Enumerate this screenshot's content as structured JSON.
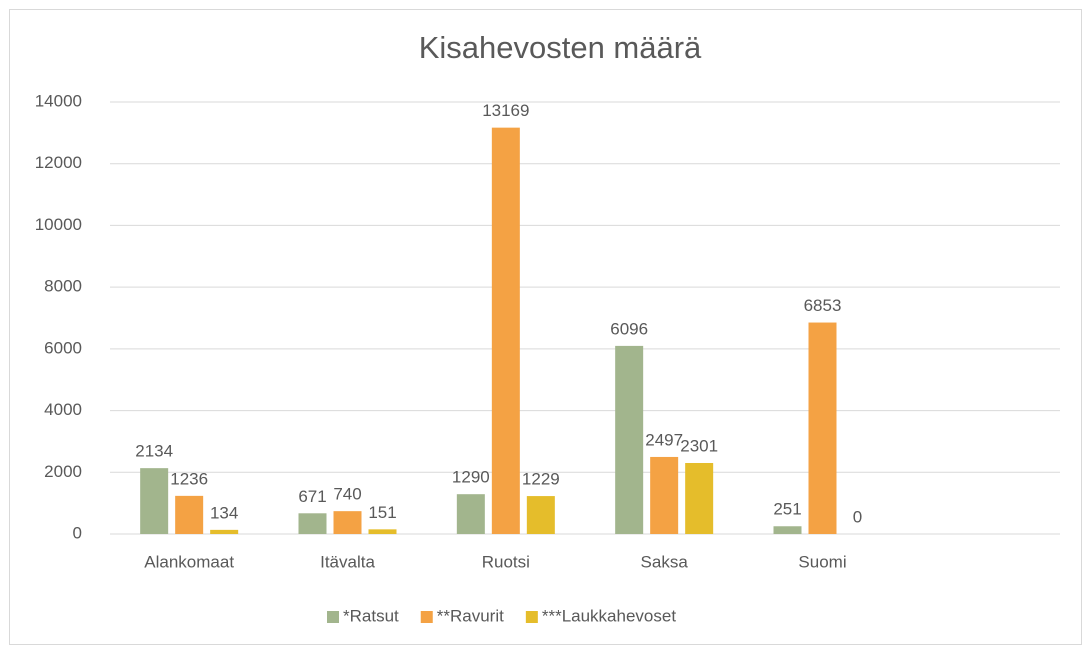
{
  "chart_data": {
    "type": "bar",
    "title": "Kisahevosten määrä",
    "categories": [
      "Alankomaat",
      "Itävalta",
      "Ruotsi",
      "Saksa",
      "Suomi",
      null
    ],
    "series": [
      {
        "name": "*Ratsut",
        "color": "#a2b58d",
        "values": [
          2134,
          671,
          1290,
          6096,
          251,
          null
        ]
      },
      {
        "name": "**Ravurit",
        "color": "#f4a244",
        "values": [
          1236,
          740,
          13169,
          2497,
          6853,
          null
        ]
      },
      {
        "name": "***Laukkahevoset",
        "color": "#e5bd2b",
        "values": [
          134,
          151,
          1229,
          2301,
          0,
          null
        ]
      }
    ],
    "ylim": [
      0,
      14000
    ],
    "yticks": [
      0,
      2000,
      4000,
      6000,
      8000,
      10000,
      12000,
      14000
    ],
    "grid": true,
    "legend": "bottom"
  }
}
